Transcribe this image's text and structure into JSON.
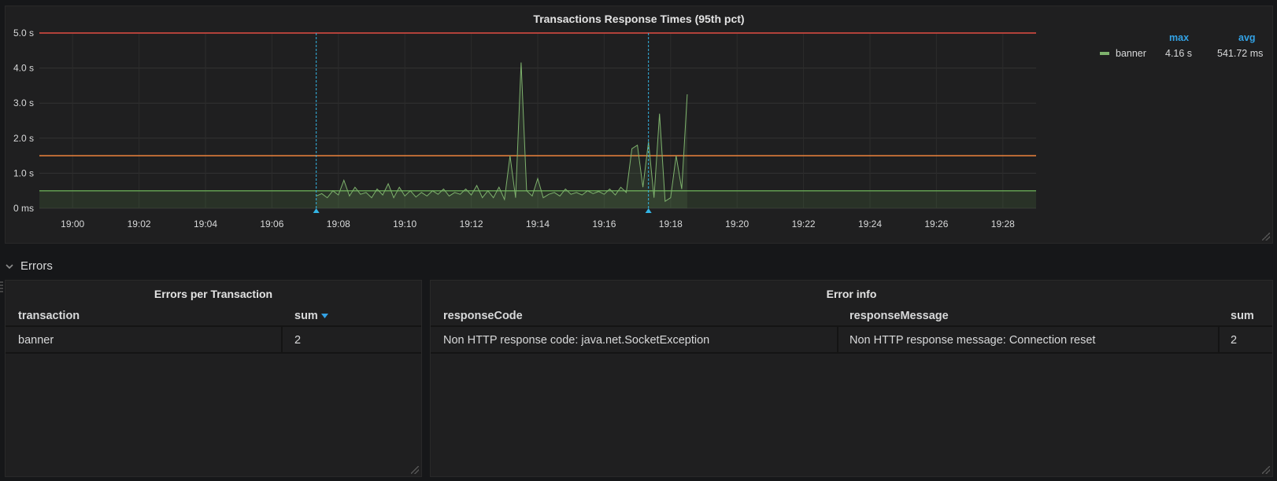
{
  "graph_panel": {
    "title": "Transactions Response Times (95th pct)"
  },
  "legend": {
    "col_max": "max",
    "col_avg": "avg",
    "series_name": "banner",
    "series_max": "4.16 s",
    "series_avg": "541.72 ms",
    "series_color": "#7eb26d"
  },
  "row": {
    "title": "Errors"
  },
  "errors_panel": {
    "title": "Errors per Transaction",
    "col_transaction": "transaction",
    "col_sum": "sum",
    "rows": [
      {
        "transaction": "banner",
        "sum": "2"
      }
    ]
  },
  "error_info_panel": {
    "title": "Error info",
    "col_code": "responseCode",
    "col_message": "responseMessage",
    "col_sum": "sum",
    "rows": [
      {
        "code": "Non HTTP response code: java.net.SocketException",
        "message": "Non HTTP response message: Connection reset",
        "sum": "2"
      }
    ]
  },
  "chart_data": {
    "type": "line",
    "y_unit": "seconds",
    "ylim": [
      0,
      5
    ],
    "y_ticks": [
      {
        "value": 0,
        "label": "0 ms"
      },
      {
        "value": 1,
        "label": "1.0 s"
      },
      {
        "value": 2,
        "label": "2.0 s"
      },
      {
        "value": 3,
        "label": "3.0 s"
      },
      {
        "value": 4,
        "label": "4.0 s"
      },
      {
        "value": 5,
        "label": "5.0 s"
      }
    ],
    "xlim": [
      "18:59:00",
      "19:29:00"
    ],
    "x_ticks": [
      "19:00",
      "19:02",
      "19:04",
      "19:06",
      "19:08",
      "19:10",
      "19:12",
      "19:14",
      "19:16",
      "19:18",
      "19:20",
      "19:22",
      "19:24",
      "19:26",
      "19:28"
    ],
    "thresholds": [
      {
        "value": 5.0,
        "color": "#e24d42"
      },
      {
        "value": 1.5,
        "color": "#ef843c"
      },
      {
        "value": 0.5,
        "color": "#629e51"
      }
    ],
    "annotations": [
      {
        "time": "19:07:20",
        "color": "#33b5e5"
      },
      {
        "time": "19:17:20",
        "color": "#33b5e5"
      }
    ],
    "legend_placement": "right",
    "grid": true,
    "series": [
      {
        "name": "banner",
        "color": "#7eb26d",
        "points": [
          [
            "19:07:20",
            0.35
          ],
          [
            "19:07:30",
            0.42
          ],
          [
            "19:07:40",
            0.3
          ],
          [
            "19:07:50",
            0.5
          ],
          [
            "19:08:00",
            0.38
          ],
          [
            "19:08:10",
            0.8
          ],
          [
            "19:08:20",
            0.35
          ],
          [
            "19:08:30",
            0.6
          ],
          [
            "19:08:40",
            0.4
          ],
          [
            "19:08:50",
            0.45
          ],
          [
            "19:09:00",
            0.3
          ],
          [
            "19:09:10",
            0.55
          ],
          [
            "19:09:20",
            0.38
          ],
          [
            "19:09:30",
            0.7
          ],
          [
            "19:09:40",
            0.3
          ],
          [
            "19:09:50",
            0.6
          ],
          [
            "19:10:00",
            0.35
          ],
          [
            "19:10:10",
            0.5
          ],
          [
            "19:10:20",
            0.32
          ],
          [
            "19:10:30",
            0.45
          ],
          [
            "19:10:40",
            0.35
          ],
          [
            "19:10:50",
            0.5
          ],
          [
            "19:11:00",
            0.4
          ],
          [
            "19:11:10",
            0.55
          ],
          [
            "19:11:20",
            0.35
          ],
          [
            "19:11:30",
            0.45
          ],
          [
            "19:11:40",
            0.4
          ],
          [
            "19:11:50",
            0.55
          ],
          [
            "19:12:00",
            0.38
          ],
          [
            "19:12:10",
            0.65
          ],
          [
            "19:12:20",
            0.3
          ],
          [
            "19:12:30",
            0.5
          ],
          [
            "19:12:40",
            0.3
          ],
          [
            "19:12:50",
            0.6
          ],
          [
            "19:13:00",
            0.25
          ],
          [
            "19:13:10",
            1.5
          ],
          [
            "19:13:20",
            0.3
          ],
          [
            "19:13:30",
            4.16
          ],
          [
            "19:13:40",
            0.5
          ],
          [
            "19:13:50",
            0.35
          ],
          [
            "19:14:00",
            0.85
          ],
          [
            "19:14:10",
            0.3
          ],
          [
            "19:14:20",
            0.4
          ],
          [
            "19:14:30",
            0.45
          ],
          [
            "19:14:40",
            0.35
          ],
          [
            "19:14:50",
            0.55
          ],
          [
            "19:15:00",
            0.4
          ],
          [
            "19:15:10",
            0.45
          ],
          [
            "19:15:20",
            0.38
          ],
          [
            "19:15:30",
            0.5
          ],
          [
            "19:15:40",
            0.42
          ],
          [
            "19:15:50",
            0.48
          ],
          [
            "19:16:00",
            0.4
          ],
          [
            "19:16:10",
            0.55
          ],
          [
            "19:16:20",
            0.38
          ],
          [
            "19:16:30",
            0.6
          ],
          [
            "19:16:40",
            0.45
          ],
          [
            "19:16:50",
            1.7
          ],
          [
            "19:17:00",
            1.8
          ],
          [
            "19:17:10",
            0.6
          ],
          [
            "19:17:20",
            1.9
          ],
          [
            "19:17:30",
            0.3
          ],
          [
            "19:17:40",
            2.7
          ],
          [
            "19:17:50",
            0.2
          ],
          [
            "19:18:00",
            0.3
          ],
          [
            "19:18:10",
            1.5
          ],
          [
            "19:18:20",
            0.55
          ],
          [
            "19:18:30",
            3.25
          ]
        ]
      }
    ]
  }
}
